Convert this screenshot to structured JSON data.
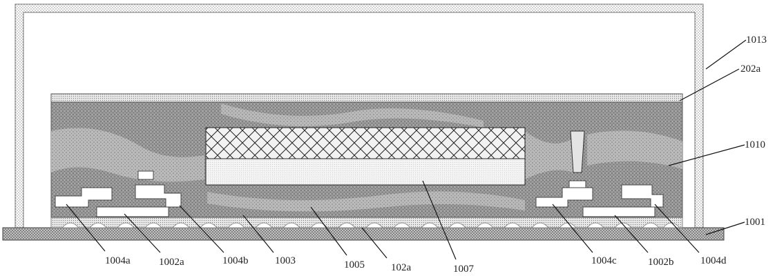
{
  "labels": {
    "l1013": "1013",
    "l202a": "202a",
    "l1010": "1010",
    "l1001": "1001",
    "l1004a": "1004a",
    "l1002a": "1002a",
    "l1004b": "1004b",
    "l1003": "1003",
    "l1005": "1005",
    "l102a": "102a",
    "l1007": "1007",
    "l1004c": "1004c",
    "l1002b": "1002b",
    "l1004d": "1004d"
  }
}
